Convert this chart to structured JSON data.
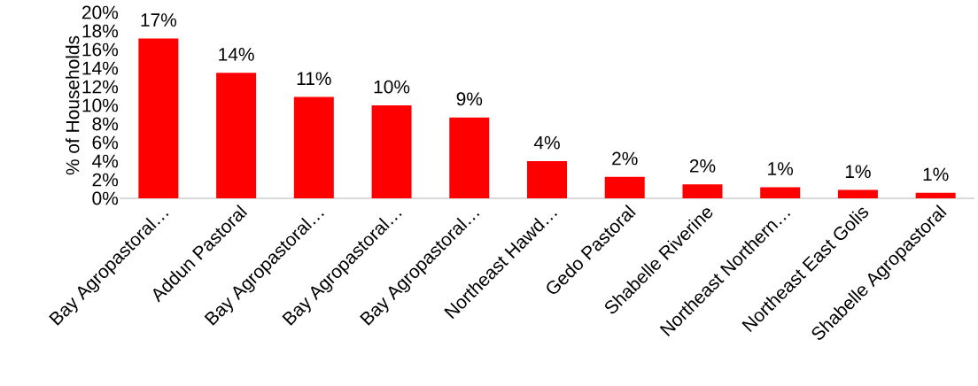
{
  "chart_data": {
    "type": "bar",
    "ylabel": "% of Households",
    "categories": [
      "Bay Agropastoral…",
      "Addun Pastoral",
      "Bay Agropastoral…",
      "Bay Agropastoral…",
      "Bay Agropastoral…",
      "Northeast Hawd…",
      "Gedo Pastoral",
      "Shabelle Riverine",
      "Northeast Northern…",
      "Northeast East Golis",
      "Shabelle Agropastoral"
    ],
    "values": [
      17.2,
      13.5,
      10.9,
      10.0,
      8.7,
      4.0,
      2.3,
      1.5,
      1.2,
      0.9,
      0.6
    ],
    "value_labels": [
      "17%",
      "14%",
      "11%",
      "10%",
      "9%",
      "4%",
      "2%",
      "2%",
      "1%",
      "1%",
      "1%"
    ],
    "color": "#ff0000",
    "ylim": [
      0,
      20
    ],
    "yticks": [
      {
        "value": 0,
        "label": "0%"
      },
      {
        "value": 2,
        "label": "2%"
      },
      {
        "value": 4,
        "label": "4%"
      },
      {
        "value": 6,
        "label": "6%"
      },
      {
        "value": 8,
        "label": "8%"
      },
      {
        "value": 10,
        "label": "10%"
      },
      {
        "value": 12,
        "label": "12%"
      },
      {
        "value": 14,
        "label": "14%"
      },
      {
        "value": 16,
        "label": "16%"
      },
      {
        "value": 18,
        "label": "18%"
      },
      {
        "value": 20,
        "label": "20%"
      }
    ],
    "grid": false
  }
}
